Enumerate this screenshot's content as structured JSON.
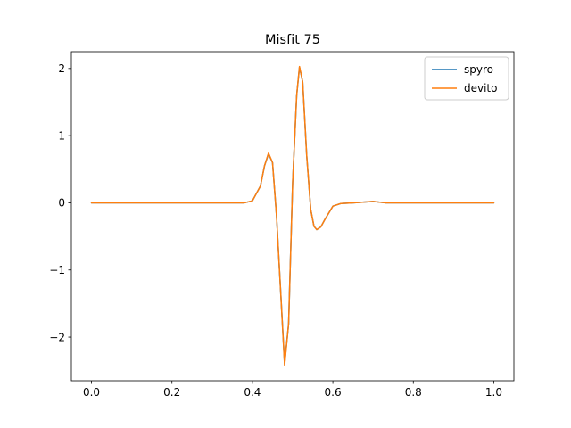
{
  "chart_data": {
    "type": "line",
    "title": "Misfit 75",
    "xlabel": "",
    "ylabel": "",
    "xlim": [
      -0.05,
      1.05
    ],
    "ylim": [
      -2.65,
      2.25
    ],
    "xticks": [
      0.0,
      0.2,
      0.4,
      0.6,
      0.8,
      1.0
    ],
    "xtick_labels": [
      "0.0",
      "0.2",
      "0.4",
      "0.6",
      "0.8",
      "1.0"
    ],
    "yticks": [
      -2,
      -1,
      0,
      1,
      2
    ],
    "ytick_labels": [
      "−2",
      "−1",
      "0",
      "1",
      "2"
    ],
    "grid": false,
    "legend_position": "top-right",
    "series": [
      {
        "name": "spyro",
        "color": "#1f77b4",
        "points": [
          [
            0.0,
            0.0
          ],
          [
            0.35,
            0.0
          ],
          [
            0.38,
            0.0
          ],
          [
            0.4,
            0.03
          ],
          [
            0.42,
            0.25
          ],
          [
            0.43,
            0.55
          ],
          [
            0.44,
            0.73
          ],
          [
            0.45,
            0.6
          ],
          [
            0.46,
            -0.2
          ],
          [
            0.47,
            -1.3
          ],
          [
            0.48,
            -2.4
          ],
          [
            0.49,
            -1.8
          ],
          [
            0.5,
            0.3
          ],
          [
            0.51,
            1.6
          ],
          [
            0.517,
            2.02
          ],
          [
            0.525,
            1.8
          ],
          [
            0.535,
            0.7
          ],
          [
            0.545,
            -0.1
          ],
          [
            0.553,
            -0.35
          ],
          [
            0.56,
            -0.4
          ],
          [
            0.57,
            -0.36
          ],
          [
            0.58,
            -0.25
          ],
          [
            0.6,
            -0.05
          ],
          [
            0.62,
            -0.01
          ],
          [
            0.65,
            0.0
          ],
          [
            0.7,
            0.02
          ],
          [
            0.73,
            0.0
          ],
          [
            0.8,
            0.0
          ],
          [
            1.0,
            0.0
          ]
        ]
      },
      {
        "name": "devito",
        "color": "#ff7f0e",
        "points": [
          [
            0.0,
            0.0
          ],
          [
            0.35,
            0.0
          ],
          [
            0.38,
            0.0
          ],
          [
            0.4,
            0.03
          ],
          [
            0.42,
            0.25
          ],
          [
            0.43,
            0.55
          ],
          [
            0.44,
            0.74
          ],
          [
            0.45,
            0.6
          ],
          [
            0.46,
            -0.2
          ],
          [
            0.47,
            -1.3
          ],
          [
            0.48,
            -2.42
          ],
          [
            0.49,
            -1.8
          ],
          [
            0.5,
            0.3
          ],
          [
            0.51,
            1.6
          ],
          [
            0.517,
            2.03
          ],
          [
            0.525,
            1.8
          ],
          [
            0.535,
            0.7
          ],
          [
            0.545,
            -0.1
          ],
          [
            0.553,
            -0.35
          ],
          [
            0.56,
            -0.4
          ],
          [
            0.57,
            -0.36
          ],
          [
            0.58,
            -0.25
          ],
          [
            0.6,
            -0.05
          ],
          [
            0.62,
            -0.01
          ],
          [
            0.65,
            0.0
          ],
          [
            0.7,
            0.02
          ],
          [
            0.73,
            0.0
          ],
          [
            0.8,
            0.0
          ],
          [
            1.0,
            0.0
          ]
        ]
      }
    ]
  }
}
